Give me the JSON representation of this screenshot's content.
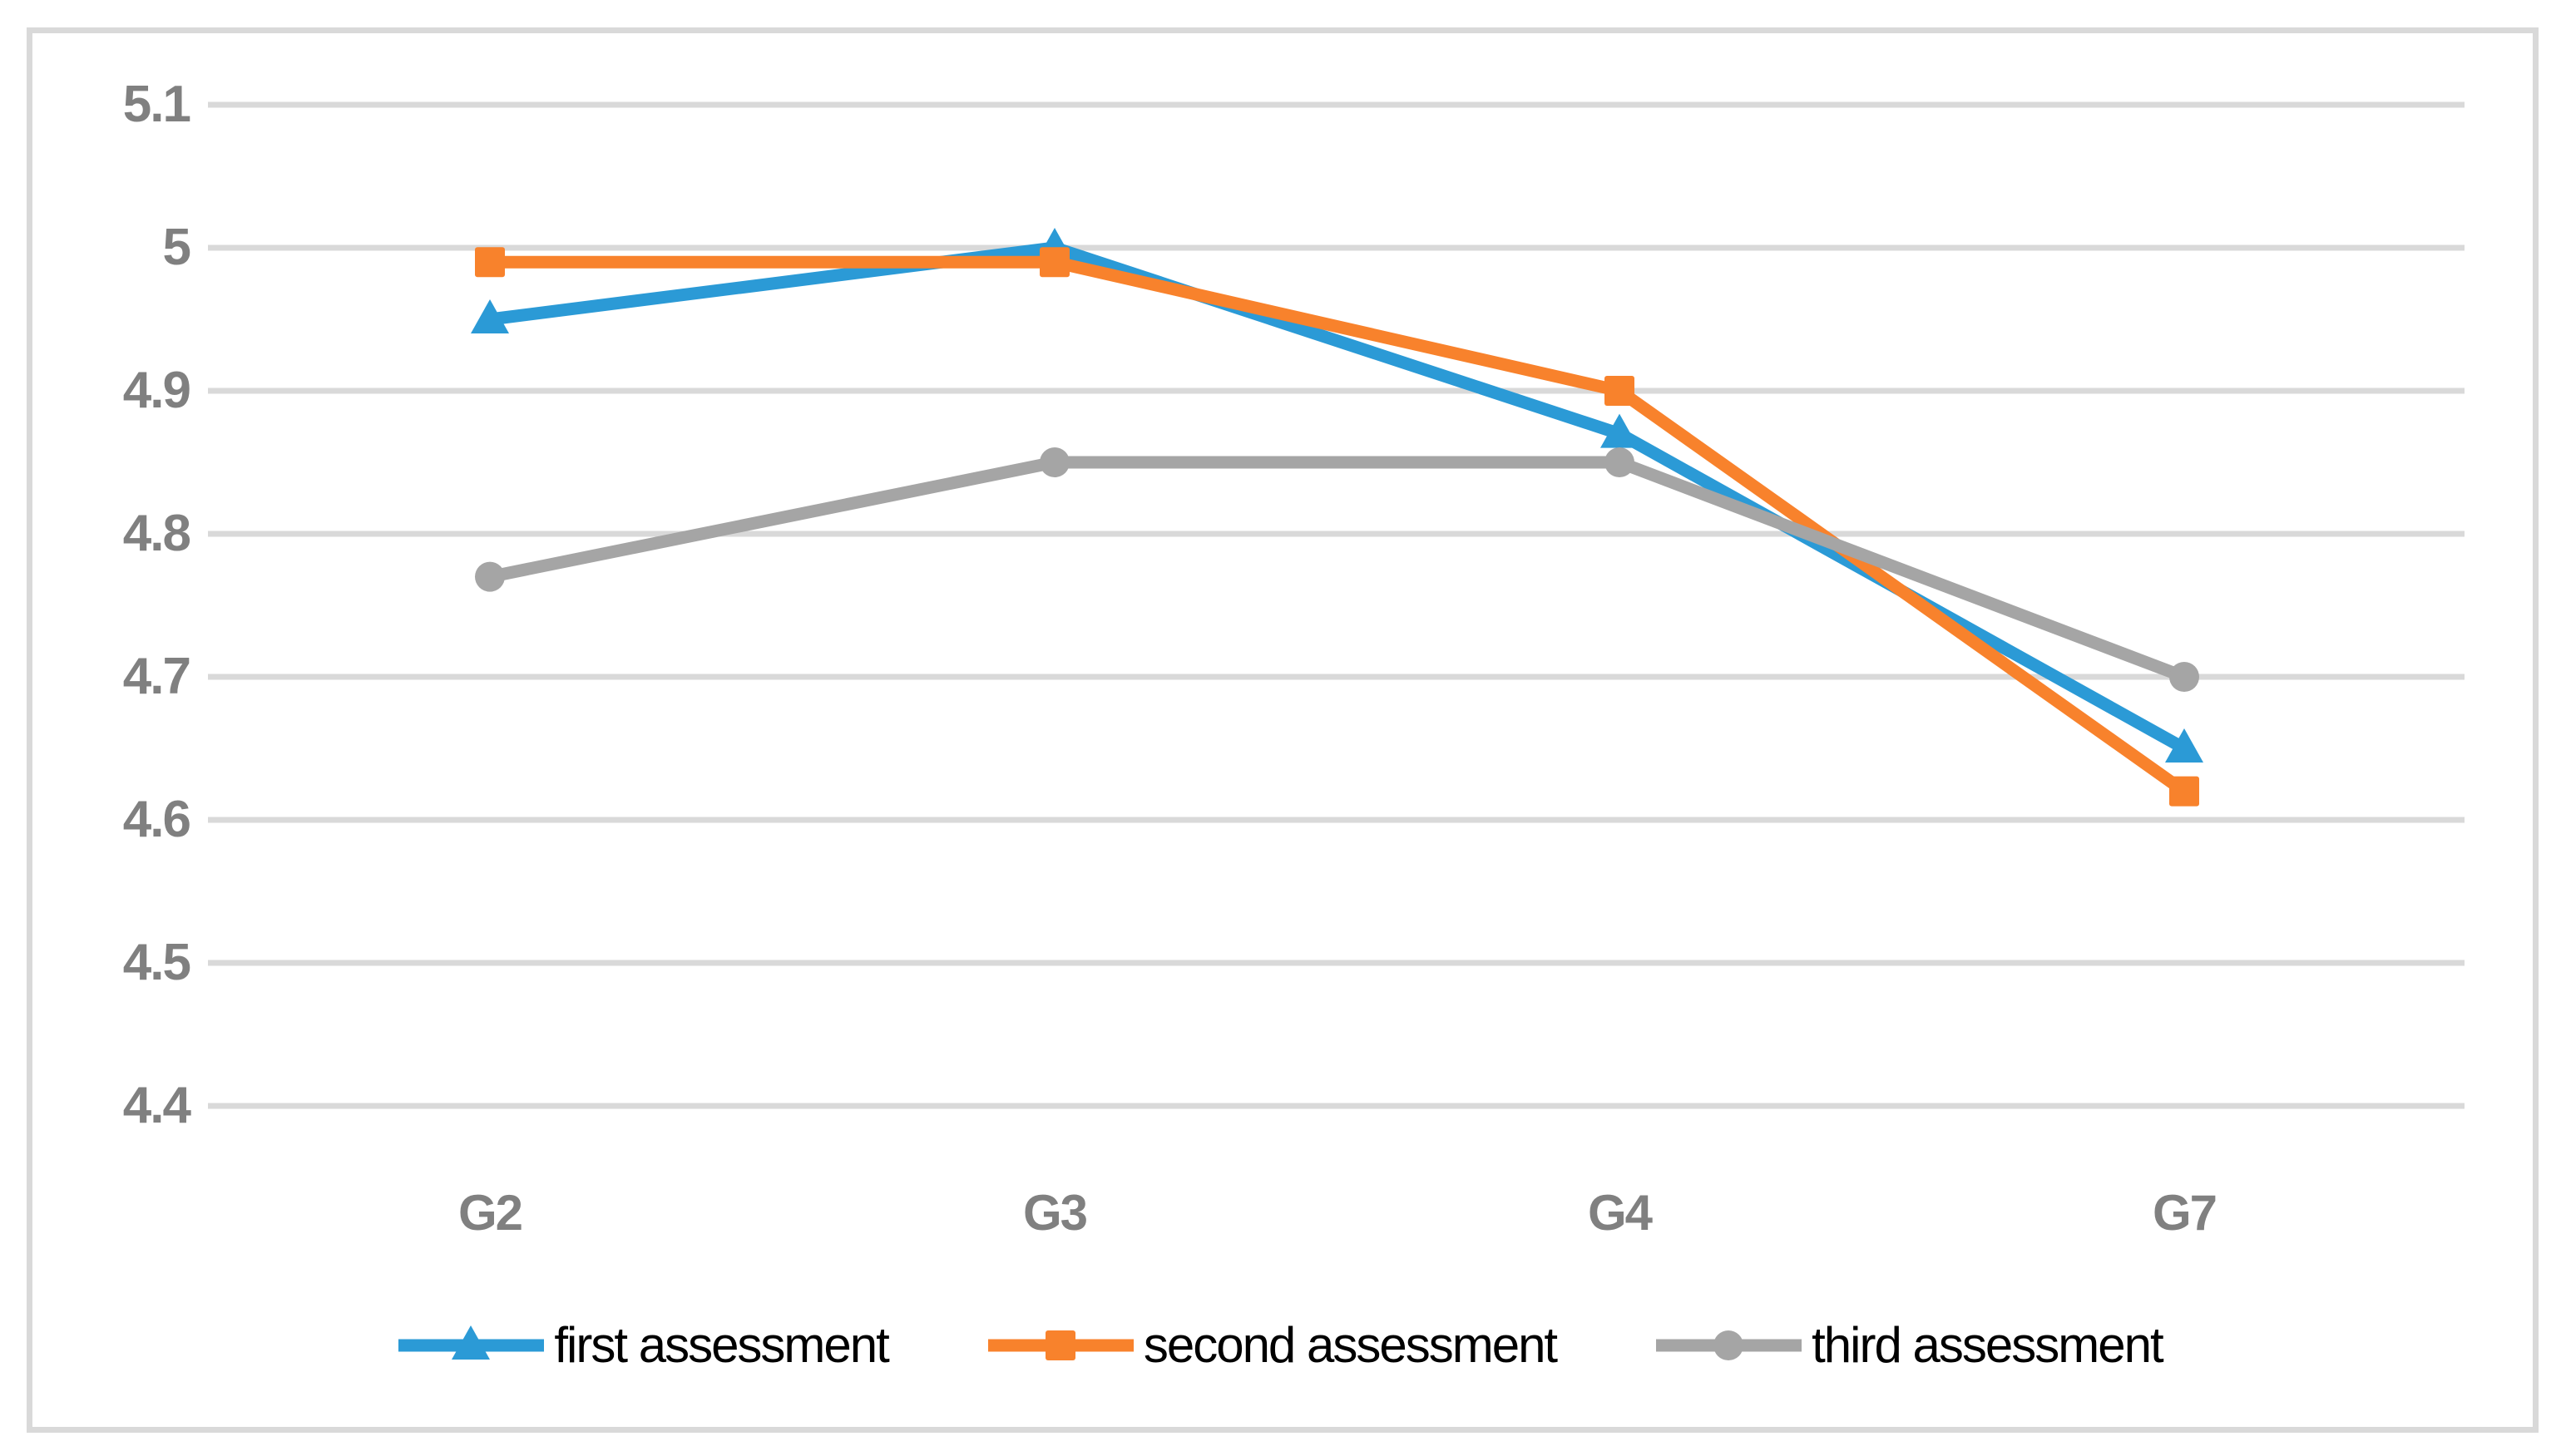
{
  "chart_data": {
    "type": "line",
    "title": "",
    "categories": [
      "G2",
      "G3",
      "G4",
      "G7"
    ],
    "series": [
      {
        "name": "first assessment",
        "marker": "triangle",
        "color": "#2B9AD6",
        "values": [
          4.95,
          5.0,
          4.87,
          4.65
        ]
      },
      {
        "name": "second assessment",
        "marker": "square",
        "color": "#F8822C",
        "values": [
          4.99,
          4.99,
          4.9,
          4.62
        ]
      },
      {
        "name": "third assessment",
        "marker": "circle",
        "color": "#A5A5A5",
        "values": [
          4.77,
          4.85,
          4.85,
          4.7
        ]
      }
    ],
    "yticks": [
      "5.1",
      "5",
      "4.9",
      "4.8",
      "4.7",
      "4.6",
      "4.5",
      "4.4"
    ],
    "ylim": [
      4.4,
      5.1
    ],
    "grid": "horizontal-only",
    "legend_position": "bottom"
  },
  "colors": {
    "background": "#FFFFFF",
    "frame_border": "#D9D9D9",
    "gridline": "#D9D9D9",
    "tick_label": "#808080",
    "legend_text": "#000000"
  }
}
